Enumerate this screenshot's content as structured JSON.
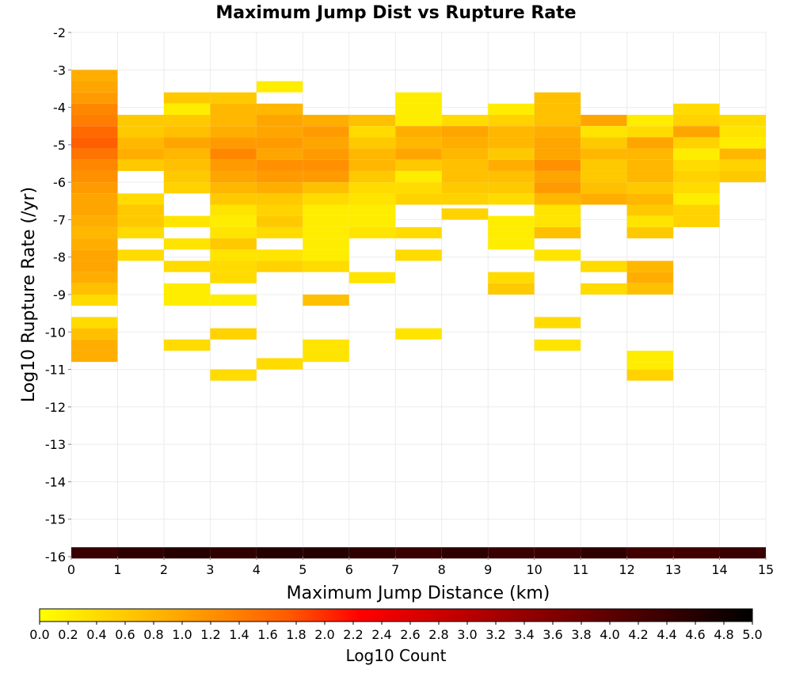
{
  "chart_data": {
    "type": "heatmap",
    "title": "Maximum Jump Dist vs Rupture Rate",
    "xlabel": "Maximum Jump Distance (km)",
    "ylabel": "Log10 Rupture Rate (/yr)",
    "xlim": [
      0,
      15
    ],
    "ylim": [
      -16,
      -2
    ],
    "x_ticks": [
      "0",
      "1",
      "2",
      "3",
      "4",
      "5",
      "6",
      "7",
      "8",
      "9",
      "10",
      "11",
      "12",
      "13",
      "14",
      "15"
    ],
    "y_ticks": [
      "-2",
      "-3",
      "-4",
      "-5",
      "-6",
      "-7",
      "-8",
      "-9",
      "-10",
      "-11",
      "-12",
      "-13",
      "-14",
      "-15",
      "-16"
    ],
    "colorbar": {
      "label": "Log10 Count",
      "range": [
        0,
        5
      ],
      "ticks": [
        "0.0",
        "0.2",
        "0.4",
        "0.6",
        "0.8",
        "1.0",
        "1.2",
        "1.4",
        "1.6",
        "1.8",
        "2.0",
        "2.2",
        "2.4",
        "2.6",
        "2.8",
        "3.0",
        "3.2",
        "3.4",
        "3.6",
        "3.8",
        "4.0",
        "4.2",
        "4.4",
        "4.6",
        "4.8",
        "5.0"
      ],
      "colors": [
        "#ffff00",
        "#ffa500",
        "#ff5a00",
        "#ff0000",
        "#8b0000",
        "#000000"
      ]
    },
    "x_bin_width": 1,
    "y_bin_height": 0.3,
    "columns": [
      {
        "x0": 0,
        "cells": [
          [
            -3.15,
            0.9
          ],
          [
            -3.45,
            1.0
          ],
          [
            -3.75,
            1.1
          ],
          [
            -4.05,
            1.3
          ],
          [
            -4.35,
            1.4
          ],
          [
            -4.65,
            1.6
          ],
          [
            -4.95,
            1.7
          ],
          [
            -5.25,
            1.5
          ],
          [
            -5.55,
            1.3
          ],
          [
            -5.85,
            1.2
          ],
          [
            -6.15,
            1.1
          ],
          [
            -6.45,
            1.0
          ],
          [
            -6.75,
            1.0
          ],
          [
            -7.05,
            0.9
          ],
          [
            -7.35,
            0.8
          ],
          [
            -7.65,
            0.9
          ],
          [
            -7.95,
            1.0
          ],
          [
            -8.25,
            1.0
          ],
          [
            -8.55,
            0.9
          ],
          [
            -8.85,
            0.7
          ],
          [
            -9.15,
            0.4
          ],
          [
            -9.75,
            0.4
          ],
          [
            -10.05,
            0.7
          ],
          [
            -10.35,
            0.9
          ],
          [
            -10.65,
            0.9
          ],
          [
            -15.9,
            4.4
          ]
        ]
      },
      {
        "x0": 1,
        "cells": [
          [
            -4.35,
            0.6
          ],
          [
            -4.65,
            0.6
          ],
          [
            -4.95,
            0.8
          ],
          [
            -5.25,
            0.9
          ],
          [
            -5.55,
            0.6
          ],
          [
            -6.45,
            0.4
          ],
          [
            -6.75,
            0.6
          ],
          [
            -7.05,
            0.6
          ],
          [
            -7.35,
            0.4
          ],
          [
            -7.95,
            0.4
          ],
          [
            -15.9,
            4.5
          ]
        ]
      },
      {
        "x0": 2,
        "cells": [
          [
            -3.75,
            0.6
          ],
          [
            -4.05,
            0.2
          ],
          [
            -4.35,
            0.6
          ],
          [
            -4.65,
            0.7
          ],
          [
            -4.95,
            1.0
          ],
          [
            -5.25,
            0.8
          ],
          [
            -5.55,
            0.7
          ],
          [
            -5.85,
            0.6
          ],
          [
            -6.15,
            0.5
          ],
          [
            -7.05,
            0.3
          ],
          [
            -7.65,
            0.3
          ],
          [
            -8.25,
            0.4
          ],
          [
            -8.85,
            0.2
          ],
          [
            -9.15,
            0.2
          ],
          [
            -10.35,
            0.4
          ],
          [
            -15.9,
            4.6
          ]
        ]
      },
      {
        "x0": 3,
        "cells": [
          [
            -3.75,
            0.6
          ],
          [
            -4.05,
            0.8
          ],
          [
            -4.35,
            0.8
          ],
          [
            -4.65,
            0.9
          ],
          [
            -4.95,
            1.1
          ],
          [
            -5.25,
            1.3
          ],
          [
            -5.55,
            1.1
          ],
          [
            -5.85,
            1.0
          ],
          [
            -6.15,
            0.8
          ],
          [
            -6.45,
            0.6
          ],
          [
            -6.75,
            0.3
          ],
          [
            -7.05,
            0.2
          ],
          [
            -7.35,
            0.3
          ],
          [
            -7.65,
            0.6
          ],
          [
            -7.95,
            0.3
          ],
          [
            -8.25,
            0.4
          ],
          [
            -8.55,
            0.4
          ],
          [
            -9.15,
            0.2
          ],
          [
            -10.05,
            0.5
          ],
          [
            -11.15,
            0.4
          ],
          [
            -15.9,
            4.5
          ]
        ]
      },
      {
        "x0": 4,
        "cells": [
          [
            -3.45,
            0.2
          ],
          [
            -4.05,
            0.8
          ],
          [
            -4.35,
            1.0
          ],
          [
            -4.65,
            1.0
          ],
          [
            -4.95,
            1.1
          ],
          [
            -5.25,
            1.0
          ],
          [
            -5.55,
            1.2
          ],
          [
            -5.85,
            1.1
          ],
          [
            -6.15,
            0.9
          ],
          [
            -6.45,
            0.6
          ],
          [
            -6.75,
            0.5
          ],
          [
            -7.05,
            0.6
          ],
          [
            -7.35,
            0.4
          ],
          [
            -7.95,
            0.3
          ],
          [
            -8.25,
            0.5
          ],
          [
            -10.85,
            0.4
          ],
          [
            -15.9,
            4.6
          ]
        ]
      },
      {
        "x0": 5,
        "cells": [
          [
            -4.35,
            0.9
          ],
          [
            -4.65,
            1.1
          ],
          [
            -4.95,
            1.0
          ],
          [
            -5.25,
            1.1
          ],
          [
            -5.55,
            1.2
          ],
          [
            -5.85,
            1.1
          ],
          [
            -6.15,
            0.7
          ],
          [
            -6.45,
            0.4
          ],
          [
            -6.75,
            0.2
          ],
          [
            -7.05,
            0.2
          ],
          [
            -7.35,
            0.2
          ],
          [
            -7.65,
            0.2
          ],
          [
            -7.95,
            0.2
          ],
          [
            -8.25,
            0.4
          ],
          [
            -9.15,
            0.7
          ],
          [
            -10.35,
            0.3
          ],
          [
            -10.65,
            0.3
          ],
          [
            -15.9,
            4.6
          ]
        ]
      },
      {
        "x0": 6,
        "cells": [
          [
            -4.35,
            0.7
          ],
          [
            -4.65,
            0.4
          ],
          [
            -4.95,
            0.6
          ],
          [
            -5.25,
            0.8
          ],
          [
            -5.55,
            0.8
          ],
          [
            -5.85,
            0.6
          ],
          [
            -6.15,
            0.4
          ],
          [
            -6.45,
            0.3
          ],
          [
            -6.75,
            0.2
          ],
          [
            -7.05,
            0.2
          ],
          [
            -7.35,
            0.3
          ],
          [
            -8.55,
            0.3
          ],
          [
            -15.9,
            4.5
          ]
        ]
      },
      {
        "x0": 7,
        "cells": [
          [
            -3.75,
            0.2
          ],
          [
            -4.05,
            0.2
          ],
          [
            -4.35,
            0.2
          ],
          [
            -4.65,
            0.9
          ],
          [
            -4.95,
            0.8
          ],
          [
            -5.25,
            1.0
          ],
          [
            -5.55,
            0.6
          ],
          [
            -5.85,
            0.2
          ],
          [
            -6.15,
            0.4
          ],
          [
            -6.45,
            0.5
          ],
          [
            -7.35,
            0.4
          ],
          [
            -7.95,
            0.4
          ],
          [
            -10.05,
            0.3
          ],
          [
            -15.9,
            4.4
          ]
        ]
      },
      {
        "x0": 8,
        "cells": [
          [
            -4.35,
            0.4
          ],
          [
            -4.65,
            1.0
          ],
          [
            -4.95,
            0.9
          ],
          [
            -5.25,
            0.8
          ],
          [
            -5.55,
            0.7
          ],
          [
            -5.85,
            0.7
          ],
          [
            -6.15,
            0.6
          ],
          [
            -6.45,
            0.5
          ],
          [
            -6.85,
            0.5
          ],
          [
            -15.9,
            4.5
          ]
        ]
      },
      {
        "x0": 9,
        "cells": [
          [
            -4.05,
            0.2
          ],
          [
            -4.35,
            0.5
          ],
          [
            -4.65,
            0.8
          ],
          [
            -4.95,
            0.8
          ],
          [
            -5.25,
            0.6
          ],
          [
            -5.55,
            0.9
          ],
          [
            -5.85,
            0.7
          ],
          [
            -6.15,
            0.6
          ],
          [
            -6.45,
            0.4
          ],
          [
            -7.05,
            0.2
          ],
          [
            -7.35,
            0.2
          ],
          [
            -7.65,
            0.2
          ],
          [
            -8.55,
            0.4
          ],
          [
            -8.85,
            0.6
          ],
          [
            -15.9,
            4.4
          ]
        ]
      },
      {
        "x0": 10,
        "cells": [
          [
            -3.75,
            0.7
          ],
          [
            -4.05,
            0.7
          ],
          [
            -4.35,
            0.7
          ],
          [
            -4.65,
            0.9
          ],
          [
            -4.95,
            1.0
          ],
          [
            -5.25,
            1.0
          ],
          [
            -5.55,
            1.2
          ],
          [
            -5.85,
            1.0
          ],
          [
            -6.15,
            1.1
          ],
          [
            -6.45,
            0.8
          ],
          [
            -6.75,
            0.3
          ],
          [
            -7.05,
            0.3
          ],
          [
            -7.35,
            0.7
          ],
          [
            -7.95,
            0.3
          ],
          [
            -9.75,
            0.4
          ],
          [
            -10.35,
            0.3
          ],
          [
            -15.9,
            4.4
          ]
        ]
      },
      {
        "x0": 11,
        "cells": [
          [
            -4.35,
            1.0
          ],
          [
            -4.65,
            0.3
          ],
          [
            -4.95,
            0.6
          ],
          [
            -5.25,
            0.8
          ],
          [
            -5.55,
            0.6
          ],
          [
            -5.85,
            0.6
          ],
          [
            -6.15,
            0.7
          ],
          [
            -6.45,
            0.9
          ],
          [
            -8.25,
            0.4
          ],
          [
            -8.85,
            0.4
          ],
          [
            -15.9,
            4.5
          ]
        ]
      },
      {
        "x0": 12,
        "cells": [
          [
            -4.35,
            0.2
          ],
          [
            -4.65,
            0.4
          ],
          [
            -4.95,
            1.0
          ],
          [
            -5.25,
            0.8
          ],
          [
            -5.55,
            0.8
          ],
          [
            -5.85,
            0.8
          ],
          [
            -6.15,
            0.6
          ],
          [
            -6.45,
            0.8
          ],
          [
            -6.75,
            0.6
          ],
          [
            -7.05,
            0.3
          ],
          [
            -7.35,
            0.6
          ],
          [
            -8.25,
            0.8
          ],
          [
            -8.55,
            0.9
          ],
          [
            -8.85,
            0.7
          ],
          [
            -10.65,
            0.2
          ],
          [
            -10.95,
            0.2
          ],
          [
            -11.15,
            0.5
          ],
          [
            -15.9,
            4.3
          ]
        ]
      },
      {
        "x0": 13,
        "cells": [
          [
            -4.05,
            0.4
          ],
          [
            -4.35,
            0.5
          ],
          [
            -4.65,
            1.0
          ],
          [
            -4.95,
            0.5
          ],
          [
            -5.25,
            0.2
          ],
          [
            -5.55,
            0.4
          ],
          [
            -5.85,
            0.5
          ],
          [
            -6.15,
            0.4
          ],
          [
            -6.45,
            0.2
          ],
          [
            -6.75,
            0.5
          ],
          [
            -7.05,
            0.5
          ],
          [
            -15.9,
            4.3
          ]
        ]
      },
      {
        "x0": 14,
        "cells": [
          [
            -4.35,
            0.4
          ],
          [
            -4.65,
            0.3
          ],
          [
            -4.95,
            0.2
          ],
          [
            -5.25,
            0.8
          ],
          [
            -5.55,
            0.5
          ],
          [
            -5.85,
            0.6
          ],
          [
            -15.9,
            4.4
          ]
        ]
      }
    ]
  }
}
